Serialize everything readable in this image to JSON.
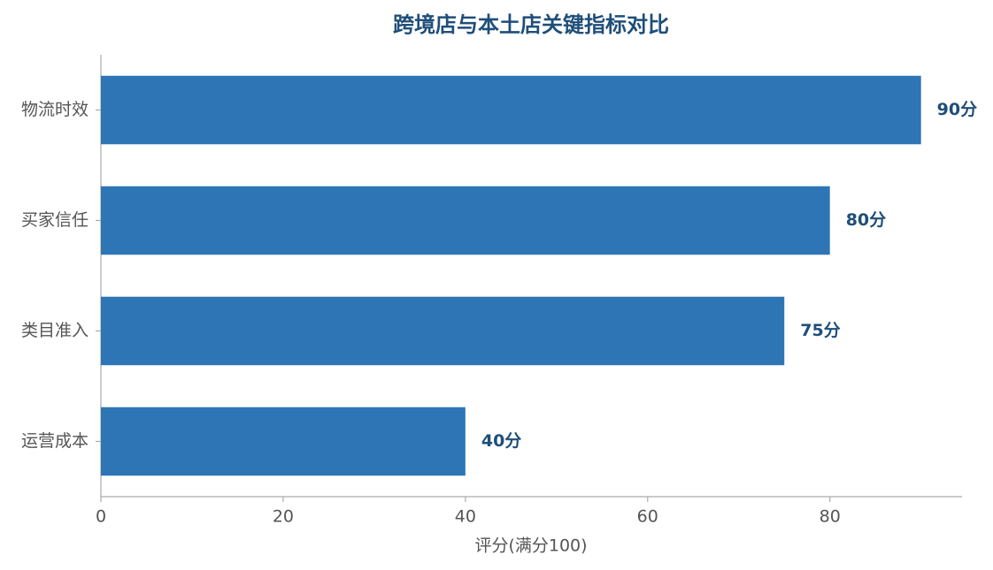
{
  "chart_data": {
    "type": "bar",
    "orientation": "horizontal",
    "title": "跨境店与本土店关键指标对比",
    "xlabel": "评分(满分100)",
    "categories": [
      "物流时效",
      "买家信任",
      "类目准入",
      "运营成本"
    ],
    "values": [
      90,
      80,
      75,
      40
    ],
    "value_labels": [
      "90分",
      "80分",
      "75分",
      "40分"
    ],
    "color": "#2e75b6",
    "xlim": [
      0,
      94.5
    ],
    "xticks": [
      0,
      20,
      40,
      60,
      80
    ],
    "grid": false
  }
}
